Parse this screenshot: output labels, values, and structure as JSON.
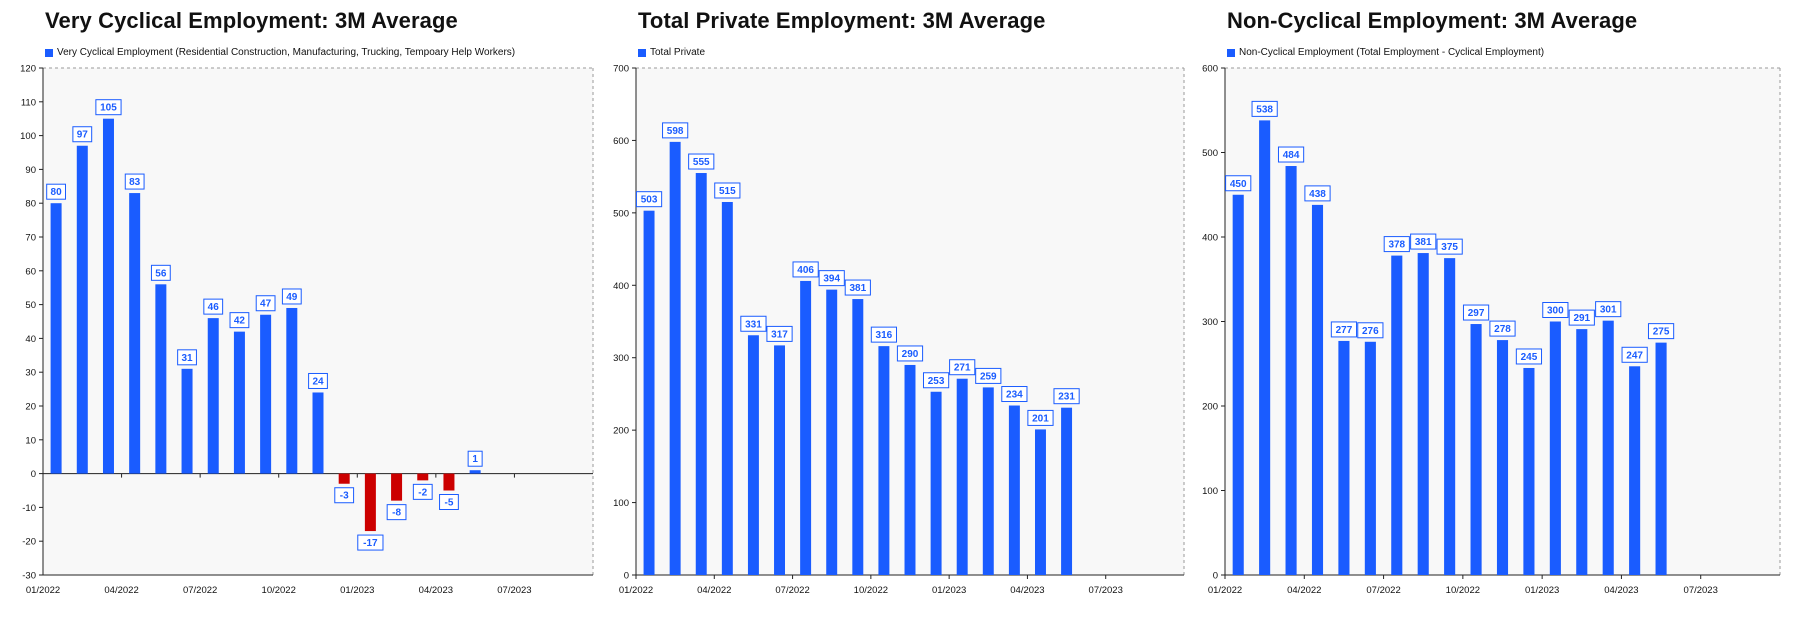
{
  "colors": {
    "bar_positive": "#1a5cff",
    "bar_negative": "#cc0000",
    "plot_bg": "#f8f8f8",
    "frame": "#9a9a9a",
    "label": "#1a5cff"
  },
  "x_ticks": [
    "01/2022",
    "04/2022",
    "07/2022",
    "10/2022",
    "01/2023",
    "04/2023",
    "07/2023"
  ],
  "chart_data": [
    {
      "type": "bar",
      "title": "Very Cyclical Employment: 3M Average",
      "legend": "Very Cyclical Employment (Residential Construction, Manufacturing, Trucking, Tempoary Help Workers)",
      "legend_placement": "top-left",
      "series_name": "Very Cyclical Employment (Residential Construction, Manufacturing, Trucking, Tempoary Help Workers)",
      "categories": [
        "01/2022",
        "02/2022",
        "03/2022",
        "04/2022",
        "05/2022",
        "06/2022",
        "07/2022",
        "08/2022",
        "09/2022",
        "10/2022",
        "11/2022",
        "12/2022",
        "01/2023",
        "02/2023",
        "03/2023",
        "04/2023",
        "05/2023"
      ],
      "values": [
        80,
        97,
        105,
        83,
        56,
        31,
        46,
        42,
        47,
        49,
        24,
        -3,
        -17,
        -8,
        -2,
        -5,
        1
      ],
      "ylim": [
        -30,
        120
      ],
      "yticks": [
        -30,
        -20,
        -10,
        0,
        10,
        20,
        30,
        40,
        50,
        60,
        70,
        80,
        90,
        100,
        110,
        120
      ],
      "xlim": [
        "01/2022",
        "07/2023"
      ],
      "grid": false
    },
    {
      "type": "bar",
      "title": "Total Private Employment: 3M Average",
      "legend": "Total Private",
      "legend_placement": "top-left",
      "series_name": "Total Private",
      "categories": [
        "01/2022",
        "02/2022",
        "03/2022",
        "04/2022",
        "05/2022",
        "06/2022",
        "07/2022",
        "08/2022",
        "09/2022",
        "10/2022",
        "11/2022",
        "12/2022",
        "01/2023",
        "02/2023",
        "03/2023",
        "04/2023",
        "05/2023"
      ],
      "values": [
        503,
        598,
        555,
        515,
        331,
        317,
        406,
        394,
        381,
        316,
        290,
        253,
        271,
        259,
        234,
        201,
        231
      ],
      "ylim": [
        0,
        700
      ],
      "yticks": [
        0,
        100,
        200,
        300,
        400,
        500,
        600,
        700
      ],
      "xlim": [
        "01/2022",
        "07/2023"
      ],
      "grid": false
    },
    {
      "type": "bar",
      "title": "Non-Cyclical Employment: 3M Average",
      "legend": "Non-Cyclical Employment (Total Employment - Cyclical Employment)",
      "legend_placement": "top-left",
      "series_name": "Non-Cyclical Employment (Total Employment - Cyclical Employment)",
      "categories": [
        "01/2022",
        "02/2022",
        "03/2022",
        "04/2022",
        "05/2022",
        "06/2022",
        "07/2022",
        "08/2022",
        "09/2022",
        "10/2022",
        "11/2022",
        "12/2022",
        "01/2023",
        "02/2023",
        "03/2023",
        "04/2023",
        "05/2023"
      ],
      "values": [
        450,
        538,
        484,
        438,
        277,
        276,
        378,
        381,
        375,
        297,
        278,
        245,
        300,
        291,
        301,
        247,
        275
      ],
      "ylim": [
        0,
        600
      ],
      "yticks": [
        0,
        100,
        200,
        300,
        400,
        500,
        600
      ],
      "xlim": [
        "01/2022",
        "07/2023"
      ],
      "grid": false
    }
  ]
}
